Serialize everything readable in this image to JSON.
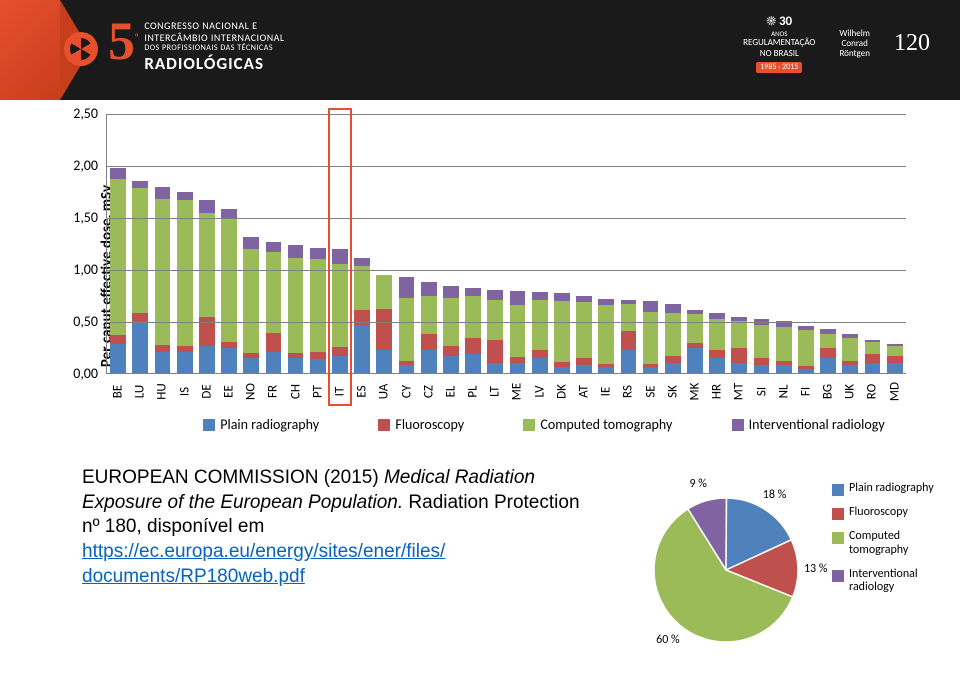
{
  "header": {
    "big_number": "5",
    "sup": "º",
    "line1": "CONGRESSO NACIONAL E",
    "line2": "INTERCÂMBIO INTERNACIONAL",
    "line3": "DOS PROFISSIONAIS DAS TÉCNICAS",
    "line4": "RADIOLÓGICAS",
    "regul_title": "REGULAMENTAÇÃO",
    "regul_sub": "NO BRASIL",
    "regul_years": "1985 · 2015",
    "anos_num": "30",
    "anos_text": "ANOS",
    "wcr_name1": "Wilhelm",
    "wcr_name2": "Conrad",
    "wcr_name3": "Röntgen",
    "wcr_num": "120"
  },
  "colors": {
    "plain": "#4f81bd",
    "fluoro": "#c0504d",
    "ct": "#9bbb59",
    "inter": "#8064a2",
    "grid": "#808080",
    "highlight": "#e8502d",
    "white": "#ffffff",
    "link": "#0563c1"
  },
  "bar_chart": {
    "y_axis_label": "Per caput effective dose, mSv",
    "ymax": 2.5,
    "y_ticks": [
      "0,00",
      "0,50",
      "1,00",
      "1,50",
      "2,00",
      "2,50"
    ],
    "highlight_index": 10,
    "legend": [
      "Plain radiography",
      "Fluoroscopy",
      "Computed tomography",
      "Interventional radiology"
    ],
    "categories": [
      "BE",
      "LU",
      "HU",
      "IS",
      "DE",
      "EE",
      "NO",
      "FR",
      "CH",
      "PT",
      "IT",
      "ES",
      "UA",
      "CY",
      "CZ",
      "EL",
      "PL",
      "LT",
      "ME",
      "LV",
      "DK",
      "AT",
      "IE",
      "RS",
      "SE",
      "SK",
      "MK",
      "HR",
      "MT",
      "SI",
      "NL",
      "FI",
      "BG",
      "UK",
      "RO",
      "MD"
    ],
    "series": [
      {
        "p": 0.28,
        "f": 0.09,
        "c": 1.5,
        "i": 0.1
      },
      {
        "p": 0.5,
        "f": 0.08,
        "c": 1.2,
        "i": 0.07
      },
      {
        "p": 0.2,
        "f": 0.07,
        "c": 1.4,
        "i": 0.12
      },
      {
        "p": 0.2,
        "f": 0.06,
        "c": 1.4,
        "i": 0.08
      },
      {
        "p": 0.26,
        "f": 0.28,
        "c": 1.0,
        "i": 0.12
      },
      {
        "p": 0.24,
        "f": 0.06,
        "c": 1.18,
        "i": 0.1
      },
      {
        "p": 0.14,
        "f": 0.05,
        "c": 1.0,
        "i": 0.12
      },
      {
        "p": 0.2,
        "f": 0.18,
        "c": 0.78,
        "i": 0.1
      },
      {
        "p": 0.14,
        "f": 0.05,
        "c": 0.92,
        "i": 0.12
      },
      {
        "p": 0.13,
        "f": 0.07,
        "c": 0.9,
        "i": 0.1
      },
      {
        "p": 0.16,
        "f": 0.09,
        "c": 0.8,
        "i": 0.14
      },
      {
        "p": 0.46,
        "f": 0.15,
        "c": 0.42,
        "i": 0.08
      },
      {
        "p": 0.22,
        "f": 0.4,
        "c": 0.32,
        "i": 0.0
      },
      {
        "p": 0.08,
        "f": 0.04,
        "c": 0.6,
        "i": 0.2
      },
      {
        "p": 0.22,
        "f": 0.16,
        "c": 0.36,
        "i": 0.14
      },
      {
        "p": 0.16,
        "f": 0.1,
        "c": 0.46,
        "i": 0.12
      },
      {
        "p": 0.18,
        "f": 0.16,
        "c": 0.4,
        "i": 0.08
      },
      {
        "p": 0.1,
        "f": 0.22,
        "c": 0.38,
        "i": 0.1
      },
      {
        "p": 0.1,
        "f": 0.05,
        "c": 0.5,
        "i": 0.14
      },
      {
        "p": 0.14,
        "f": 0.08,
        "c": 0.48,
        "i": 0.08
      },
      {
        "p": 0.06,
        "f": 0.05,
        "c": 0.58,
        "i": 0.08
      },
      {
        "p": 0.08,
        "f": 0.06,
        "c": 0.54,
        "i": 0.06
      },
      {
        "p": 0.06,
        "f": 0.03,
        "c": 0.56,
        "i": 0.06
      },
      {
        "p": 0.22,
        "f": 0.18,
        "c": 0.26,
        "i": 0.04
      },
      {
        "p": 0.06,
        "f": 0.03,
        "c": 0.5,
        "i": 0.1
      },
      {
        "p": 0.1,
        "f": 0.06,
        "c": 0.42,
        "i": 0.08
      },
      {
        "p": 0.24,
        "f": 0.05,
        "c": 0.28,
        "i": 0.04
      },
      {
        "p": 0.14,
        "f": 0.08,
        "c": 0.3,
        "i": 0.06
      },
      {
        "p": 0.1,
        "f": 0.14,
        "c": 0.26,
        "i": 0.04
      },
      {
        "p": 0.08,
        "f": 0.06,
        "c": 0.32,
        "i": 0.06
      },
      {
        "p": 0.08,
        "f": 0.04,
        "c": 0.32,
        "i": 0.06
      },
      {
        "p": 0.04,
        "f": 0.03,
        "c": 0.34,
        "i": 0.04
      },
      {
        "p": 0.14,
        "f": 0.1,
        "c": 0.14,
        "i": 0.04
      },
      {
        "p": 0.08,
        "f": 0.04,
        "c": 0.22,
        "i": 0.04
      },
      {
        "p": 0.1,
        "f": 0.08,
        "c": 0.12,
        "i": 0.02
      },
      {
        "p": 0.1,
        "f": 0.06,
        "c": 0.1,
        "i": 0.02
      }
    ]
  },
  "text_block": {
    "citation_prefix": "EUROPEAN COMMISSION (2015) ",
    "citation_italic": "Medical Radiation Exposure of the European Population. ",
    "citation_suffix": "Radiation Protection nº 180, disponível em ",
    "link1": "https://ec.europa.eu/energy/sites/ener/files/",
    "link2": "documents/RP180web.pdf"
  },
  "pie": {
    "radius": 72,
    "slices": [
      {
        "value": 9,
        "label": "9 %",
        "color": "#8064a2"
      },
      {
        "value": 18,
        "label": "18 %",
        "color": "#4f81bd"
      },
      {
        "value": 13,
        "label": "13 %",
        "color": "#c0504d"
      },
      {
        "value": 60,
        "label": "60 %",
        "color": "#9bbb59"
      }
    ],
    "legend": [
      "Plain radiography",
      "Fluoroscopy",
      "Computed tomography",
      "Interventional radiology"
    ],
    "legend_colors": [
      "#4f81bd",
      "#c0504d",
      "#9bbb59",
      "#8064a2"
    ]
  }
}
